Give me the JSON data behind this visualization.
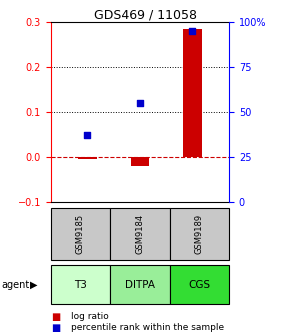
{
  "title": "GDS469 / 11058",
  "samples": [
    "T3",
    "DITPA",
    "CGS"
  ],
  "gsm_labels": [
    "GSM9185",
    "GSM9184",
    "GSM9189"
  ],
  "log_ratio": [
    -0.005,
    -0.02,
    0.285
  ],
  "percentile_rank_pct": [
    37,
    55,
    95
  ],
  "left_ylim": [
    -0.1,
    0.3
  ],
  "right_ylim": [
    0,
    100
  ],
  "left_yticks": [
    -0.1,
    0.0,
    0.1,
    0.2,
    0.3
  ],
  "right_yticks": [
    0,
    25,
    50,
    75,
    100
  ],
  "right_yticklabels": [
    "0",
    "25",
    "50",
    "75",
    "100%"
  ],
  "bar_color": "#cc0000",
  "dot_color": "#0000cc",
  "zero_line_color": "#cc0000",
  "sample_colors": [
    "#ccffcc",
    "#99ee99",
    "#33dd33"
  ],
  "gsm_bg_color": "#c8c8c8",
  "legend_bar_label": "log ratio",
  "legend_dot_label": "percentile rank within the sample",
  "bar_width": 0.35,
  "x_positions": [
    1,
    2,
    3
  ],
  "xlim": [
    0.3,
    3.7
  ]
}
